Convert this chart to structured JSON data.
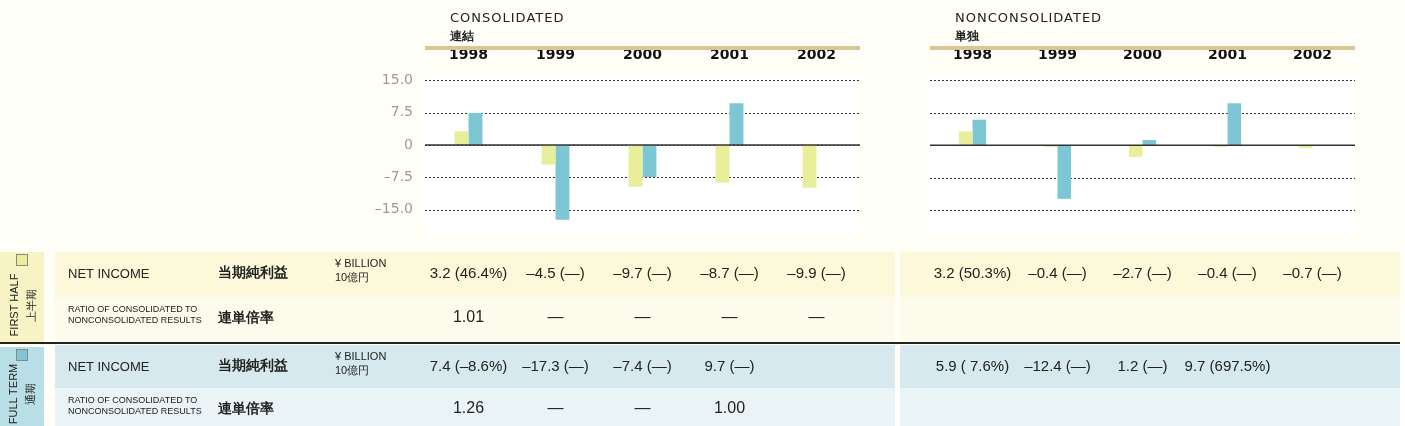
{
  "chart_data": [
    {
      "type": "bar",
      "title": "CONSOLIDATED",
      "subtitle": "連結",
      "categories": [
        "1998",
        "1999",
        "2000",
        "2001",
        "2002"
      ],
      "series": [
        {
          "name": "FIRST HALF 上半期",
          "color": "#e8ee9a",
          "values": [
            3.2,
            -4.5,
            -9.7,
            -8.7,
            -9.9
          ],
          "value_labels": [
            "3.2 (46.4%)",
            "–4.5 (—)",
            "–9.7 (—)",
            "–8.7 (—)",
            "–9.9 (—)"
          ]
        },
        {
          "name": "FULL TERM 通期",
          "color": "#7cc7d3",
          "values": [
            7.4,
            -17.3,
            -7.4,
            9.7,
            null
          ],
          "value_labels": [
            "7.4 (–8.6%)",
            "–17.3 (—)",
            "–7.4 (—)",
            "9.7 (—)",
            null
          ]
        }
      ],
      "ylim": [
        -21,
        16
      ],
      "yticks": [
        {
          "value": 15,
          "label": "15.0"
        },
        7.5,
        0,
        {
          "value": -7.5,
          "label": "–7.5"
        },
        {
          "value": -15,
          "label": "–15.0"
        }
      ],
      "grid": "y",
      "legend": "bottom left",
      "annotations": [
        "NET INCOME",
        "当期純利益",
        "¥ BILLION",
        "10億円",
        "RATIO OF CONSOLIDATED TO NONCONSOLIDATED RESULTS",
        "連単倍率",
        "NET INCOME",
        "当期純利益",
        "¥ BILLION",
        "10億円",
        "RATIO OF CONSOLIDATED TO NONCONSOLIDATED RESULTS",
        "連単倍率",
        "1.01",
        "—",
        "—",
        "—",
        "—",
        "1.26",
        "—",
        "—",
        "1.00"
      ]
    },
    {
      "type": "bar",
      "title": "NONCONSOLIDATED",
      "subtitle": "単独",
      "categories": [
        "1998",
        "1999",
        "2000",
        "2001",
        "2002"
      ],
      "series": [
        {
          "color": "#e8ee9a",
          "values": [
            3.2,
            -0.4,
            -2.7,
            -0.4,
            -0.7
          ],
          "value_labels": [
            "3.2 (50.3%)",
            "–0.4 (—)",
            "–2.7 (—)",
            "–0.4 (—)",
            "–0.7 (—)"
          ]
        },
        {
          "color": "#7cc7d3",
          "values": [
            5.9,
            -12.4,
            1.2,
            9.7,
            null
          ],
          "value_labels": [
            "5.9 ( 7.6%)",
            "–12.4 (—)",
            "1.2 (—)",
            "9.7 (697.5%)",
            null
          ]
        }
      ],
      "ylim": [
        -21,
        16
      ],
      "yticks": [
        15,
        7.5,
        0,
        -7.5,
        -15
      ],
      "grid": "y",
      "tick_labels": "x"
    }
  ]
}
